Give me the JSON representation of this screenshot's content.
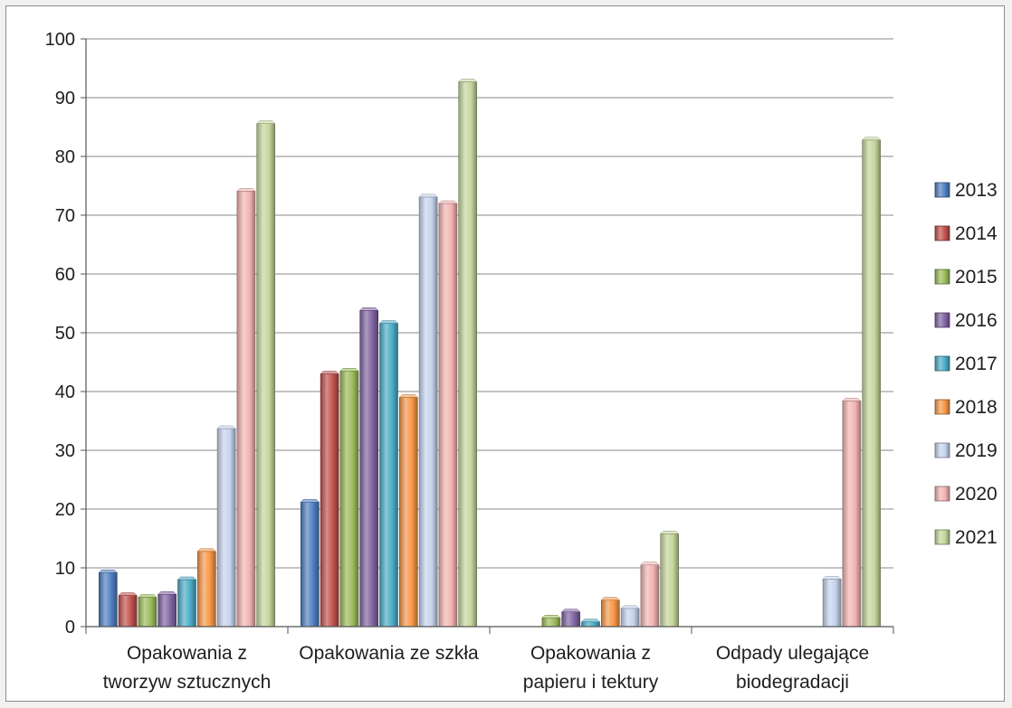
{
  "chart_data": {
    "type": "bar",
    "categories": [
      [
        "Opakowania z",
        "tworzyw sztucznych"
      ],
      [
        "Opakowania ze szkła"
      ],
      [
        "Opakowania z",
        "papieru i tektury"
      ],
      [
        "Odpady ulegające",
        "biodegradacji"
      ]
    ],
    "series": [
      {
        "name": "2013",
        "color": "#4f7ec0",
        "values": [
          9.2,
          21.2,
          0,
          0
        ]
      },
      {
        "name": "2014",
        "color": "#c0504d",
        "values": [
          5.3,
          43.0,
          0,
          0
        ]
      },
      {
        "name": "2015",
        "color": "#9bbb59",
        "values": [
          5.0,
          43.5,
          1.5,
          0
        ]
      },
      {
        "name": "2016",
        "color": "#8064a2",
        "values": [
          5.5,
          53.8,
          2.5,
          0
        ]
      },
      {
        "name": "2017",
        "color": "#4bacc6",
        "values": [
          8.0,
          51.6,
          0.8,
          0
        ]
      },
      {
        "name": "2018",
        "color": "#f79646",
        "values": [
          12.8,
          39.0,
          4.5,
          0
        ]
      },
      {
        "name": "2019",
        "color": "#c5d3ec",
        "values": [
          33.7,
          73.1,
          3.1,
          8.1
        ]
      },
      {
        "name": "2020",
        "color": "#f2b3b2",
        "values": [
          74.1,
          72.0,
          10.5,
          38.4
        ]
      },
      {
        "name": "2021",
        "color": "#c4d59b",
        "values": [
          85.6,
          92.7,
          15.8,
          82.8
        ]
      }
    ],
    "ylim": [
      0,
      100
    ],
    "yticks": [
      "0",
      "10",
      "20",
      "30",
      "40",
      "50",
      "60",
      "70",
      "80",
      "90",
      "100"
    ],
    "grid": true,
    "legend_position": "right",
    "title": "",
    "xlabel": "",
    "ylabel": ""
  }
}
